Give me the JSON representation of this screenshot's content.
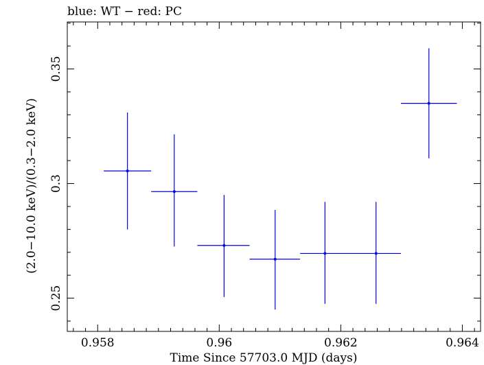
{
  "chart_data": {
    "type": "scatter",
    "title": "blue: WT − red: PC",
    "xlabel": "Time Since 57703.0 MJD (days)",
    "ylabel": "(2.0−10.0 keV)/(0.3−2.0 keV)",
    "xlim": [
      0.9575,
      0.9643
    ],
    "ylim": [
      0.2355,
      0.3705
    ],
    "xticks": [
      {
        "value": 0.958,
        "label": "0.958"
      },
      {
        "value": 0.96,
        "label": "0.96"
      },
      {
        "value": 0.962,
        "label": "0.962"
      },
      {
        "value": 0.964,
        "label": "0.964"
      }
    ],
    "yticks": [
      {
        "value": 0.25,
        "label": "0.25"
      },
      {
        "value": 0.3,
        "label": "0.3"
      },
      {
        "value": 0.35,
        "label": "0.35"
      }
    ],
    "grid": false,
    "series": [
      {
        "color": "#0000e6",
        "points": [
          {
            "x": 0.95849,
            "xerr": [
              0.9581,
              0.95888
            ],
            "y": 0.3055,
            "yerr": [
              0.28,
              0.331
            ]
          },
          {
            "x": 0.95926,
            "xerr": [
              0.95888,
              0.95964
            ],
            "y": 0.2965,
            "yerr": [
              0.2725,
              0.3215
            ]
          },
          {
            "x": 0.96008,
            "xerr": [
              0.95964,
              0.9605
            ],
            "y": 0.273,
            "yerr": [
              0.2505,
              0.295
            ]
          },
          {
            "x": 0.96092,
            "xerr": [
              0.9605,
              0.96133
            ],
            "y": 0.267,
            "yerr": [
              0.245,
              0.2885
            ]
          },
          {
            "x": 0.96174,
            "xerr": [
              0.96133,
              0.96216
            ],
            "y": 0.2695,
            "yerr": [
              0.2475,
              0.292
            ]
          },
          {
            "x": 0.96258,
            "xerr": [
              0.96216,
              0.96299
            ],
            "y": 0.2695,
            "yerr": [
              0.2475,
              0.292
            ]
          },
          {
            "x": 0.96345,
            "xerr": [
              0.96299,
              0.96391
            ],
            "y": 0.335,
            "yerr": [
              0.311,
              0.359
            ]
          }
        ]
      }
    ]
  }
}
